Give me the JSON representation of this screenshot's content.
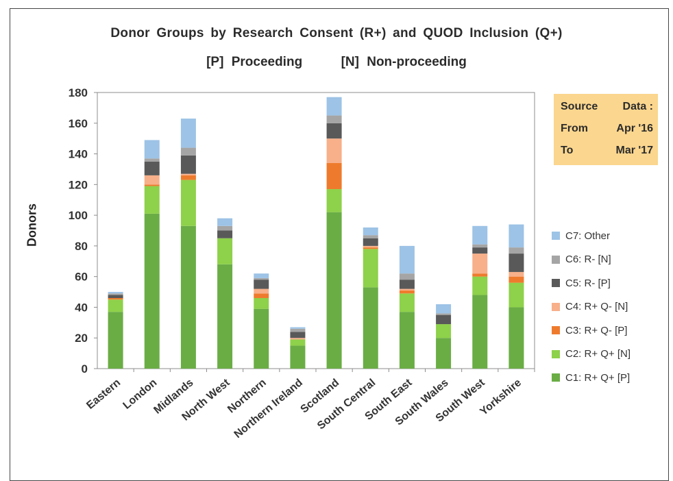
{
  "chart_data": {
    "type": "bar",
    "stacked": true,
    "title": "Donor Groups by Research Consent (R+) and QUOD Inclusion (Q+)",
    "subtitle": "[P] Proceeding     [N] Non-proceeding",
    "xlabel": "",
    "ylabel": "Donors",
    "ylim": [
      0,
      180
    ],
    "yticks": [
      0,
      20,
      40,
      60,
      80,
      100,
      120,
      140,
      160,
      180
    ],
    "grid": false,
    "legend_position": "right",
    "categories": [
      "Eastern",
      "London",
      "Midlands",
      "North West",
      "Northern",
      "Northern Ireland",
      "Scotland",
      "South Central",
      "South East",
      "South Wales",
      "South West",
      "Yorkshire"
    ],
    "series": [
      {
        "name": "C1: R+ Q+ [P]",
        "color": "#6aad45",
        "values": [
          37,
          101,
          93,
          68,
          39,
          15,
          102,
          53,
          37,
          20,
          48,
          40
        ]
      },
      {
        "name": "C2: R+ Q+ [N]",
        "color": "#8ed14a",
        "values": [
          8,
          18,
          30,
          17,
          7,
          4,
          15,
          25,
          12,
          9,
          12,
          16
        ]
      },
      {
        "name": "C3: R+ Q- [P]",
        "color": "#ee7b2d",
        "values": [
          1,
          1,
          3,
          0,
          3,
          0,
          17,
          1,
          2,
          0,
          2,
          4
        ]
      },
      {
        "name": "C4: R+ Q- [N]",
        "color": "#f7b08a",
        "values": [
          0,
          6,
          1,
          0,
          3,
          1,
          16,
          1,
          1,
          0,
          13,
          3
        ]
      },
      {
        "name": "C5: R- [P]",
        "color": "#595959",
        "values": [
          2,
          9,
          12,
          5,
          6,
          4,
          10,
          5,
          6,
          6,
          4,
          12
        ]
      },
      {
        "name": "C6: R- [N]",
        "color": "#a5a5a5",
        "values": [
          1,
          2,
          5,
          3,
          1,
          2,
          5,
          2,
          4,
          1,
          2,
          4
        ]
      },
      {
        "name": "C7: Other",
        "color": "#9dc3e6",
        "values": [
          1,
          12,
          19,
          5,
          3,
          1,
          12,
          5,
          18,
          6,
          12,
          15
        ]
      }
    ]
  },
  "source_box": {
    "row1_left": "Source",
    "row1_right": "Data :",
    "row2_left": "From",
    "row2_right": "Apr '16",
    "row3_left": "To",
    "row3_right": "Mar '17"
  }
}
